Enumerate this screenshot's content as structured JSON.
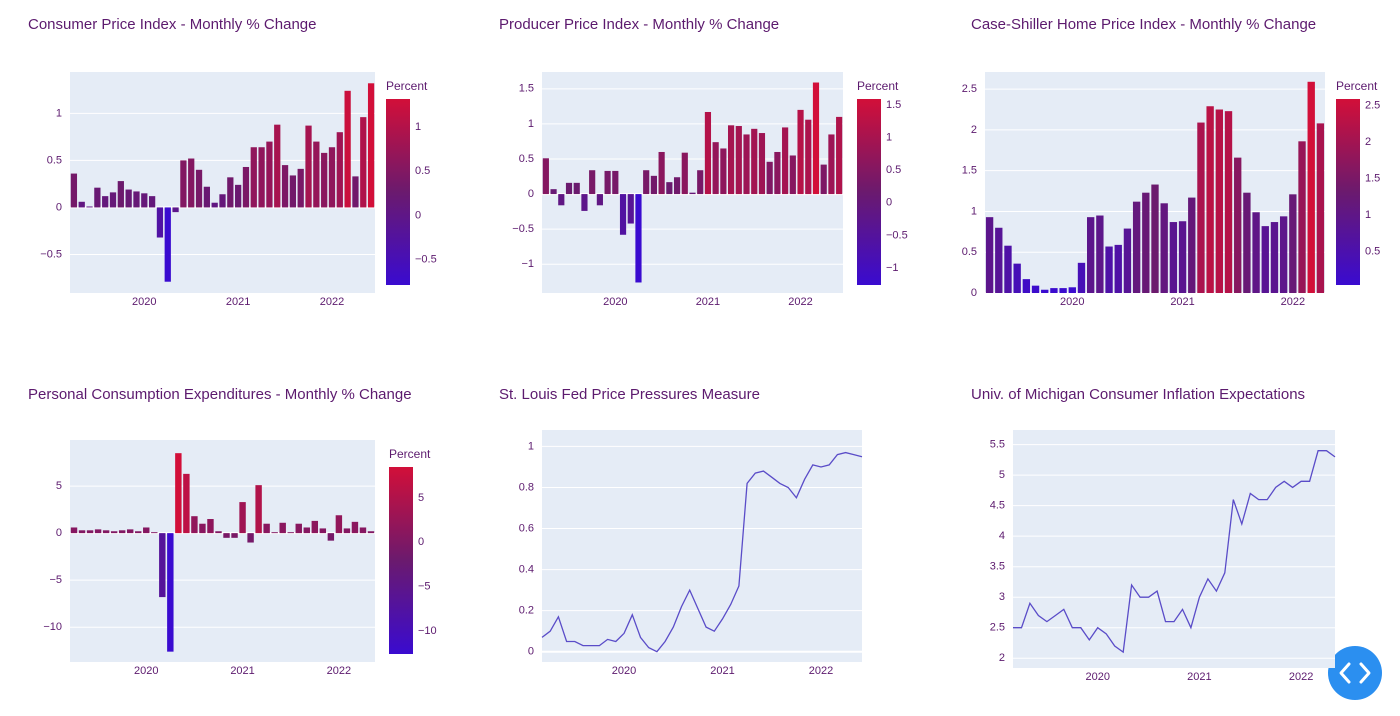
{
  "chart_data": [
    {
      "type": "bar",
      "title": "Consumer Price Index - Monthly % Change",
      "categories": [
        null,
        null,
        null,
        null,
        null,
        null,
        null,
        null,
        null,
        "2020",
        null,
        null,
        null,
        null,
        null,
        null,
        null,
        null,
        null,
        null,
        null,
        "2021",
        null,
        null,
        null,
        null,
        null,
        null,
        null,
        null,
        null,
        null,
        null,
        "2022",
        null,
        null,
        null,
        null,
        null
      ],
      "values": [
        0.36,
        0.06,
        0.01,
        0.21,
        0.12,
        0.16,
        0.28,
        0.19,
        0.17,
        0.15,
        0.12,
        -0.32,
        -0.79,
        -0.05,
        0.5,
        0.52,
        0.4,
        0.22,
        0.05,
        0.14,
        0.32,
        0.24,
        0.43,
        0.64,
        0.64,
        0.7,
        0.88,
        0.45,
        0.34,
        0.41,
        0.87,
        0.7,
        0.58,
        0.64,
        0.8,
        1.24,
        0.33,
        0.96,
        1.32
      ],
      "colorscale": [
        "#3a0bd0",
        "#6b1a6e",
        "#d20f39"
      ],
      "colorbar": {
        "title": "Percent",
        "ticks": [
          {
            "value": -0.5,
            "label": "−0.5"
          },
          0,
          0.5,
          1
        ]
      },
      "ylim": [
        -0.91,
        1.44
      ],
      "yticks": [
        {
          "value": -0.5,
          "label": "−0.5"
        },
        0,
        0.5,
        1
      ],
      "grid": true
    },
    {
      "type": "bar",
      "title": "Producer Price Index - Monthly % Change",
      "categories": [
        null,
        null,
        null,
        null,
        null,
        null,
        null,
        null,
        null,
        "2020",
        null,
        null,
        null,
        null,
        null,
        null,
        null,
        null,
        null,
        null,
        null,
        "2021",
        null,
        null,
        null,
        null,
        null,
        null,
        null,
        null,
        null,
        null,
        null,
        "2022",
        null,
        null,
        null,
        null,
        null
      ],
      "values": [
        0.51,
        0.07,
        -0.16,
        0.16,
        0.16,
        -0.24,
        0.34,
        -0.16,
        0.33,
        0.33,
        -0.58,
        -0.42,
        -1.26,
        0.34,
        0.26,
        0.6,
        0.17,
        0.24,
        0.59,
        0.02,
        0.34,
        1.17,
        0.74,
        0.65,
        0.98,
        0.97,
        0.85,
        0.93,
        0.87,
        0.46,
        0.6,
        0.95,
        0.55,
        1.2,
        1.06,
        1.59,
        0.42,
        0.85,
        1.1
      ],
      "colorscale": [
        "#3a0bd0",
        "#6b1a6e",
        "#d20f39"
      ],
      "colorbar": {
        "title": "Percent",
        "ticks": [
          {
            "value": -1,
            "label": "−1"
          },
          {
            "value": -0.5,
            "label": "−0.5"
          },
          0,
          0.5,
          1,
          1.5
        ]
      },
      "ylim": [
        -1.41,
        1.74
      ],
      "yticks": [
        {
          "value": -1,
          "label": "−1"
        },
        {
          "value": -0.5,
          "label": "−0.5"
        },
        0,
        0.5,
        1,
        1.5
      ],
      "grid": true
    },
    {
      "type": "bar",
      "title": "Case-Shiller Home Price Index - Monthly % Change",
      "categories": [
        null,
        null,
        null,
        null,
        null,
        null,
        null,
        null,
        null,
        "2020",
        null,
        null,
        null,
        null,
        null,
        null,
        null,
        null,
        null,
        null,
        null,
        "2021",
        null,
        null,
        null,
        null,
        null,
        null,
        null,
        null,
        null,
        null,
        null,
        "2022",
        null,
        null,
        null
      ],
      "values": [
        0.93,
        0.8,
        0.58,
        0.36,
        0.17,
        0.09,
        0.04,
        0.06,
        0.06,
        0.07,
        0.37,
        0.93,
        0.95,
        0.57,
        0.59,
        0.79,
        1.12,
        1.23,
        1.33,
        1.1,
        0.87,
        0.88,
        1.17,
        2.09,
        2.29,
        2.25,
        2.23,
        1.66,
        1.23,
        0.99,
        0.82,
        0.87,
        0.94,
        1.21,
        1.86,
        2.59,
        2.08
      ],
      "colorscale": [
        "#3a0bd0",
        "#6b1a6e",
        "#d20f39"
      ],
      "colorbar": {
        "title": "Percent",
        "ticks": [
          0.5,
          1,
          1.5,
          2,
          2.5
        ]
      },
      "ylim": [
        0,
        2.71
      ],
      "yticks": [
        0,
        0.5,
        1,
        1.5,
        2,
        2.5
      ],
      "grid": true
    },
    {
      "type": "bar",
      "title": "Personal Consumption Expenditures - Monthly % Change",
      "categories": [
        null,
        null,
        null,
        null,
        null,
        null,
        null,
        null,
        null,
        "2020",
        null,
        null,
        null,
        null,
        null,
        null,
        null,
        null,
        null,
        null,
        null,
        "2021",
        null,
        null,
        null,
        null,
        null,
        null,
        null,
        null,
        null,
        null,
        null,
        "2022",
        null,
        null,
        null,
        null
      ],
      "values": [
        0.6,
        0.3,
        0.3,
        0.4,
        0.3,
        0.2,
        0.3,
        0.4,
        0.2,
        0.6,
        0.1,
        -6.8,
        -12.6,
        8.5,
        6.3,
        1.8,
        1.0,
        1.5,
        0.2,
        -0.5,
        -0.5,
        3.3,
        -1.0,
        5.1,
        1.0,
        0.1,
        1.1,
        0.1,
        1.0,
        0.6,
        1.3,
        0.5,
        -0.8,
        1.9,
        0.5,
        1.2,
        0.6,
        0.2
      ],
      "colorscale": [
        "#3a0bd0",
        "#6b1a6e",
        "#d20f39"
      ],
      "colorbar": {
        "title": "Percent",
        "ticks": [
          {
            "value": -10,
            "label": "−10"
          },
          {
            "value": -5,
            "label": "−5"
          },
          0,
          5
        ]
      },
      "ylim": [
        -13.7,
        9.9
      ],
      "yticks": [
        {
          "value": -10,
          "label": "−10"
        },
        {
          "value": -5,
          "label": "−5"
        },
        0,
        5
      ],
      "grid": true
    },
    {
      "type": "line",
      "title": "St. Louis Fed Price Pressures Measure",
      "categories": [
        null,
        null,
        null,
        null,
        null,
        null,
        null,
        null,
        null,
        null,
        "2020",
        null,
        null,
        null,
        null,
        null,
        null,
        null,
        null,
        null,
        null,
        null,
        "2021",
        null,
        null,
        null,
        null,
        null,
        null,
        null,
        null,
        null,
        null,
        null,
        "2022",
        null,
        null,
        null,
        null,
        null
      ],
      "values": [
        0.07,
        0.1,
        0.17,
        0.05,
        0.05,
        0.03,
        0.03,
        0.03,
        0.06,
        0.05,
        0.09,
        0.18,
        0.07,
        0.02,
        0.0,
        0.05,
        0.12,
        0.22,
        0.3,
        0.21,
        0.12,
        0.1,
        0.16,
        0.23,
        0.32,
        0.82,
        0.87,
        0.88,
        0.85,
        0.82,
        0.8,
        0.75,
        0.84,
        0.91,
        0.9,
        0.91,
        0.96,
        0.97,
        0.96,
        0.95
      ],
      "color": "#5a4cc8",
      "ylim": [
        -0.05,
        1.08
      ],
      "yticks": [
        0,
        0.2,
        0.4,
        0.6,
        0.8,
        1
      ],
      "grid": true
    },
    {
      "type": "line",
      "title": "Univ. of Michigan Consumer Inflation Expectations",
      "categories": [
        null,
        null,
        null,
        null,
        null,
        null,
        null,
        null,
        null,
        null,
        "2020",
        null,
        null,
        null,
        null,
        null,
        null,
        null,
        null,
        null,
        null,
        null,
        "2021",
        null,
        null,
        null,
        null,
        null,
        null,
        null,
        null,
        null,
        null,
        null,
        "2022",
        null,
        null,
        null,
        null
      ],
      "values": [
        2.5,
        2.5,
        2.9,
        2.7,
        2.6,
        2.7,
        2.8,
        2.5,
        2.5,
        2.3,
        2.5,
        2.4,
        2.2,
        2.1,
        3.2,
        3.0,
        3.0,
        3.1,
        2.6,
        2.6,
        2.8,
        2.5,
        3.0,
        3.3,
        3.1,
        3.4,
        4.6,
        4.2,
        4.7,
        4.6,
        4.6,
        4.8,
        4.9,
        4.8,
        4.9,
        4.9,
        5.4,
        5.4,
        5.3
      ],
      "color": "#5a4cc8",
      "ylim": [
        1.84,
        5.74
      ],
      "yticks": [
        2,
        2.5,
        3,
        3.5,
        4,
        4.5,
        5,
        5.5
      ],
      "grid": true
    }
  ]
}
